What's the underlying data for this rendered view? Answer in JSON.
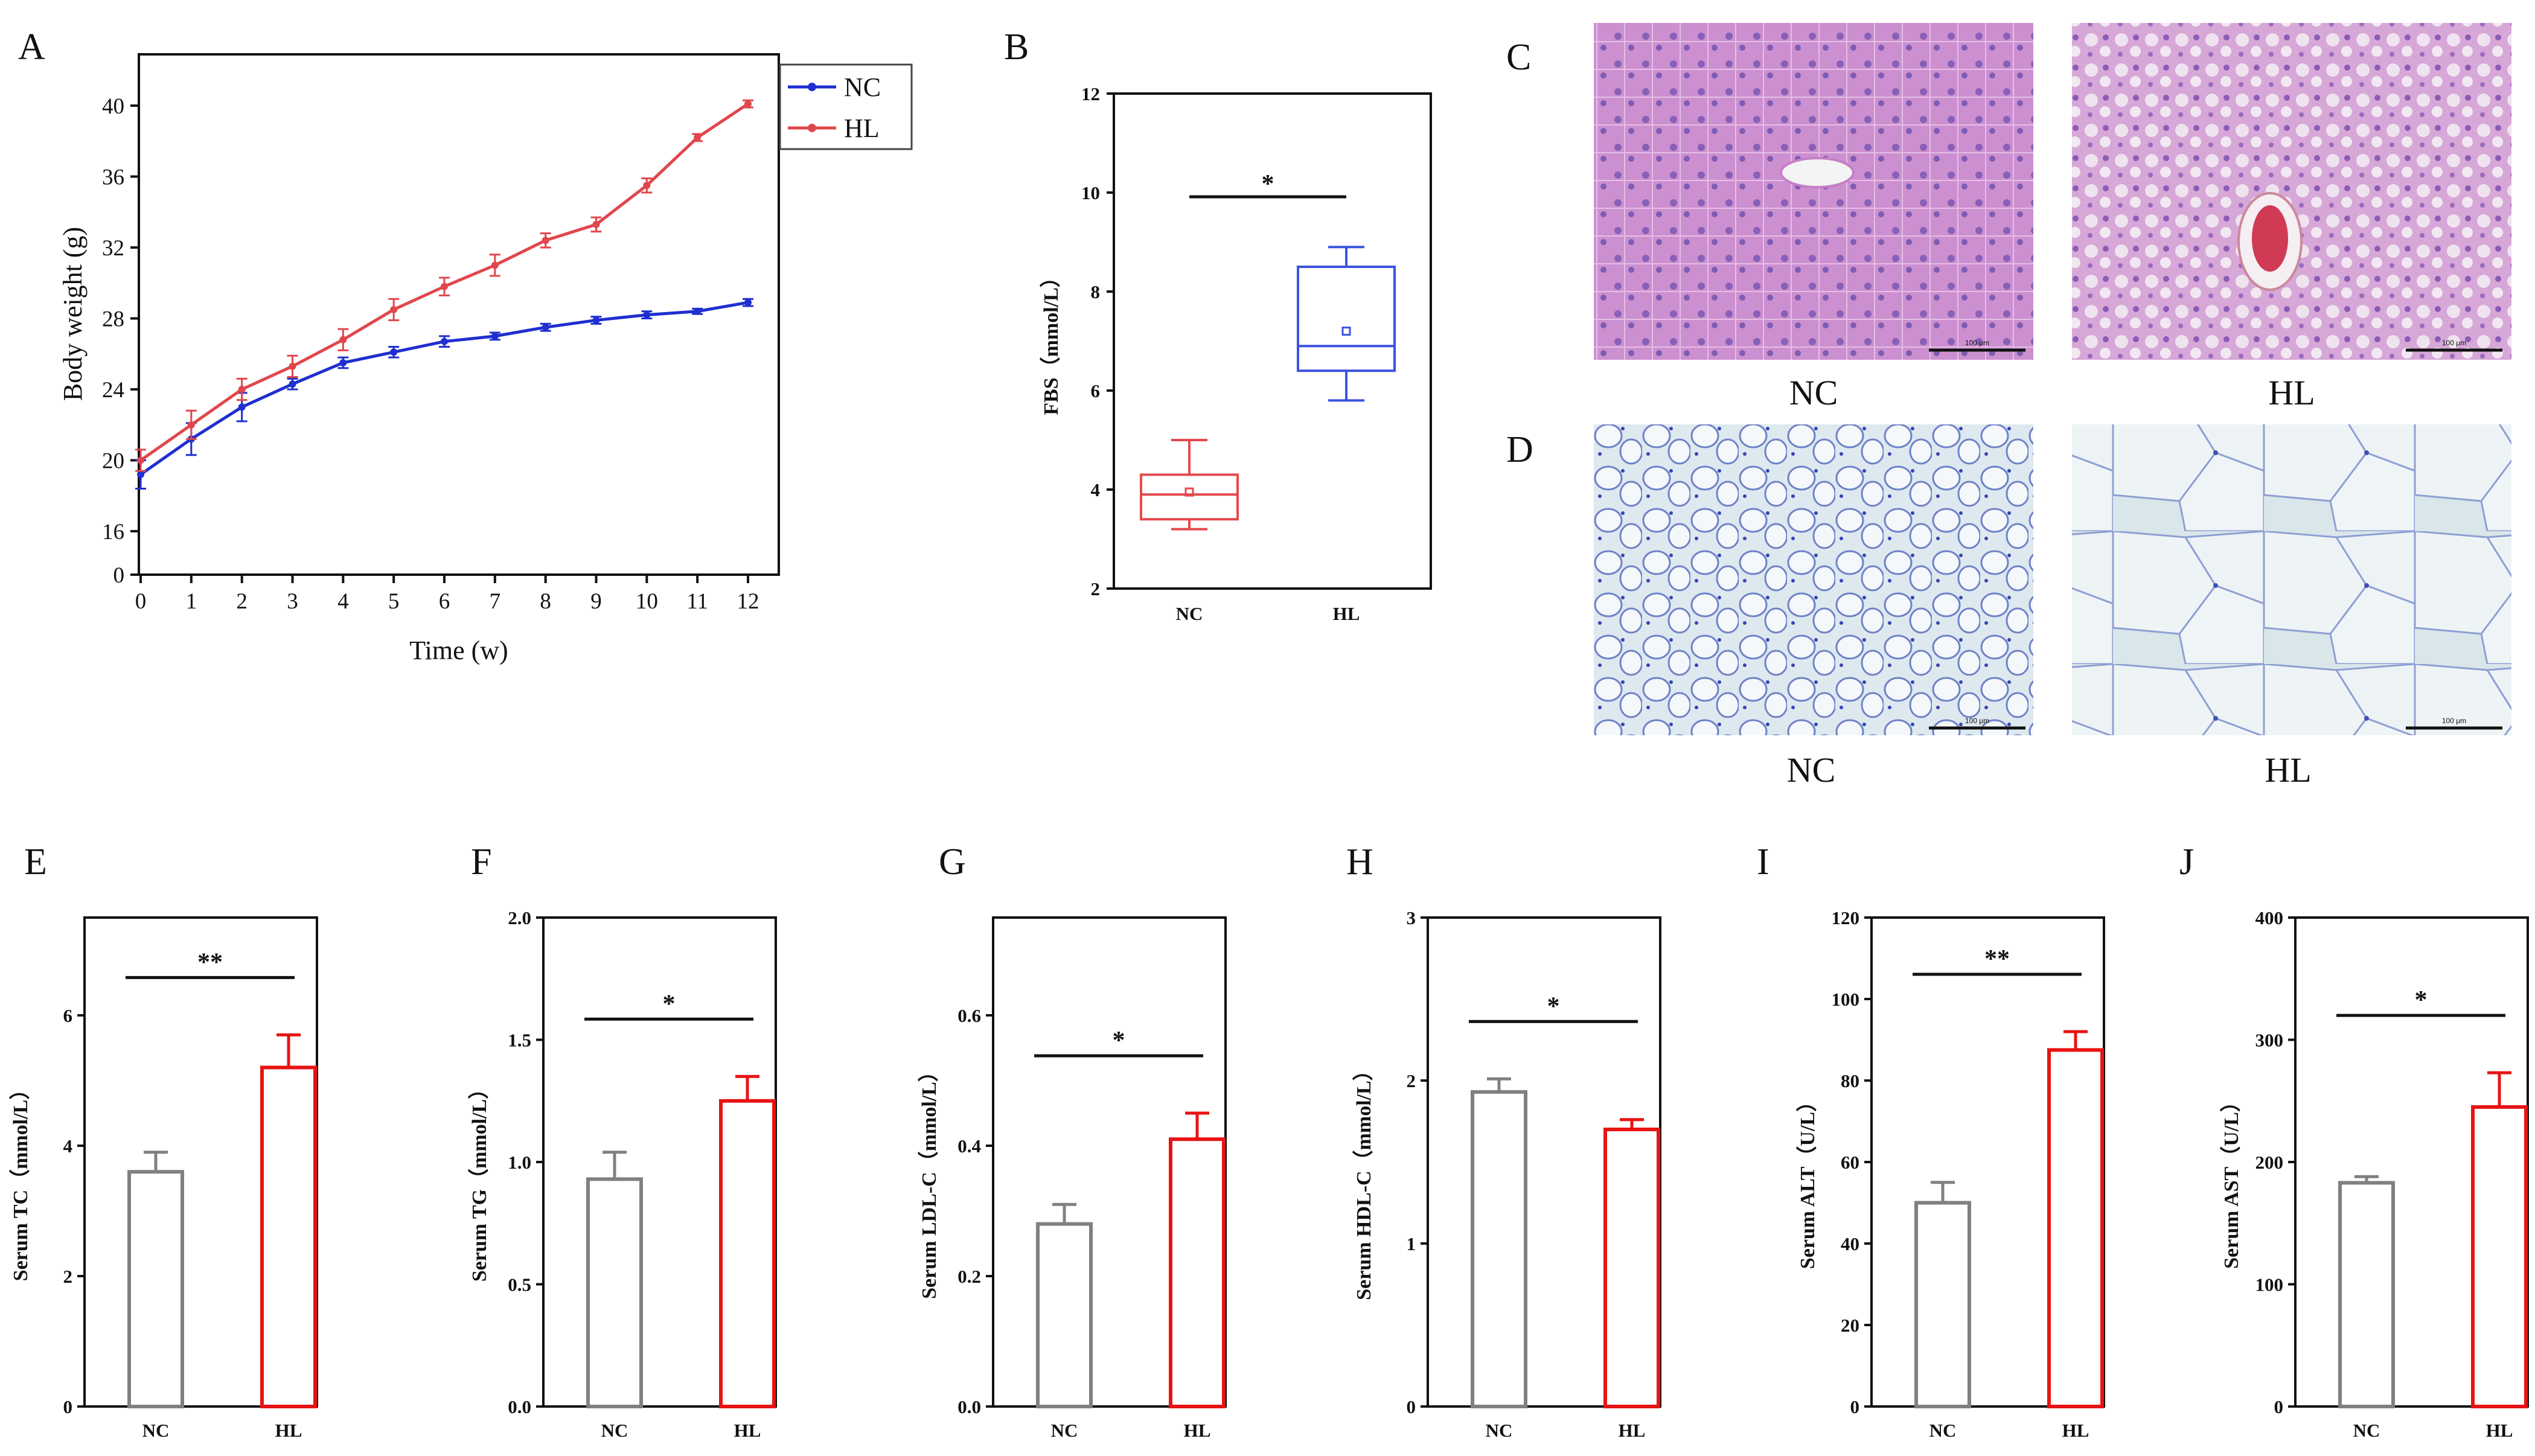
{
  "colors": {
    "nc_line": "#1f2fd0",
    "hl_line": "#e0474c",
    "nc_bar": "#808080",
    "hl_bar": "#e81313",
    "nc_box": "#e5484d",
    "hl_box": "#3b53e0"
  },
  "panel_letters": {
    "A": "A",
    "B": "B",
    "C": "C",
    "D": "D",
    "E": "E",
    "F": "F",
    "G": "G",
    "H": "H",
    "I": "I",
    "J": "J"
  },
  "image_captions": {
    "c_nc": "NC",
    "c_hl": "HL",
    "d_nc": "NC",
    "d_hl": "HL"
  },
  "scale_bar_label": "100 μm",
  "chart_data": [
    {
      "id": "A",
      "type": "line",
      "xlabel": "Time (w)",
      "ylabel": "Body weight (g)",
      "x": [
        0,
        1,
        2,
        3,
        4,
        5,
        6,
        7,
        8,
        9,
        10,
        11,
        12
      ],
      "xticks": [
        "0",
        "1",
        "2",
        "3",
        "4",
        "5",
        "6",
        "7",
        "8",
        "9",
        "10",
        "11",
        "12"
      ],
      "yticks": [
        "0",
        "16",
        "20",
        "24",
        "28",
        "32",
        "36",
        "40"
      ],
      "legend": [
        "NC",
        "HL"
      ],
      "series": [
        {
          "name": "NC",
          "values": [
            19.2,
            21.2,
            23.0,
            24.3,
            25.5,
            26.1,
            26.7,
            27.0,
            27.5,
            27.9,
            28.2,
            28.4,
            28.9
          ],
          "errors": [
            0.8,
            0.9,
            0.8,
            0.3,
            0.3,
            0.3,
            0.3,
            0.2,
            0.2,
            0.2,
            0.2,
            0.15,
            0.2
          ]
        },
        {
          "name": "HL",
          "values": [
            20.0,
            22.0,
            24.0,
            25.3,
            26.8,
            28.5,
            29.8,
            31.0,
            32.4,
            33.3,
            35.5,
            38.2,
            40.1
          ],
          "errors": [
            0.6,
            0.8,
            0.6,
            0.6,
            0.6,
            0.6,
            0.5,
            0.6,
            0.4,
            0.4,
            0.4,
            0.2,
            0.2
          ]
        }
      ]
    },
    {
      "id": "B",
      "type": "box",
      "ylabel": "FBS（mmol/L）",
      "ylim": [
        2,
        12
      ],
      "yticks": [
        "2",
        "4",
        "6",
        "8",
        "10",
        "12"
      ],
      "categories": [
        "NC",
        "HL"
      ],
      "boxes": [
        {
          "name": "NC",
          "min": 3.2,
          "q1": 3.4,
          "median": 3.9,
          "q3": 4.3,
          "max": 5.0,
          "mean": 3.95
        },
        {
          "name": "HL",
          "min": 5.8,
          "q1": 6.4,
          "median": 6.9,
          "q3": 8.5,
          "max": 8.9,
          "mean": 7.2
        }
      ],
      "significance": "*"
    },
    {
      "id": "E",
      "type": "bar",
      "ylabel": "Serum TC（mmol/L）",
      "ylim": [
        0,
        7.5
      ],
      "yticks": [
        "0",
        "2",
        "4",
        "6"
      ],
      "categories": [
        "NC",
        "HL"
      ],
      "values": [
        3.6,
        5.2
      ],
      "errors": [
        0.3,
        0.5
      ],
      "significance": "**"
    },
    {
      "id": "F",
      "type": "bar",
      "ylabel": "Serum TG（mmol/L）",
      "ylim": [
        0,
        2.0
      ],
      "yticks": [
        "0.0",
        "0.5",
        "1.0",
        "1.5",
        "2.0"
      ],
      "categories": [
        "NC",
        "HL"
      ],
      "values": [
        0.93,
        1.25
      ],
      "errors": [
        0.11,
        0.1
      ],
      "significance": "*"
    },
    {
      "id": "G",
      "type": "bar",
      "ylabel": "Serum LDL-C（mmol/L）",
      "ylim": [
        0,
        0.75
      ],
      "yticks": [
        "0.0",
        "0.2",
        "0.4",
        "0.6"
      ],
      "categories": [
        "NC",
        "HL"
      ],
      "values": [
        0.28,
        0.41
      ],
      "errors": [
        0.03,
        0.04
      ],
      "significance": "*"
    },
    {
      "id": "H",
      "type": "bar",
      "ylabel": "Serum HDL-C（mmol/L）",
      "ylim": [
        0,
        3
      ],
      "yticks": [
        "0",
        "1",
        "2",
        "3"
      ],
      "categories": [
        "NC",
        "HL"
      ],
      "values": [
        1.93,
        1.7
      ],
      "errors": [
        0.08,
        0.06
      ],
      "significance": "*"
    },
    {
      "id": "I",
      "type": "bar",
      "ylabel": "Serum ALT（U/L）",
      "ylim": [
        0,
        120
      ],
      "yticks": [
        "0",
        "20",
        "40",
        "60",
        "80",
        "100",
        "120"
      ],
      "categories": [
        "NC",
        "HL"
      ],
      "values": [
        50,
        87.5
      ],
      "errors": [
        5,
        4.5
      ],
      "significance": "**"
    },
    {
      "id": "J",
      "type": "bar",
      "ylabel": "Serum AST（U/L）",
      "ylim": [
        0,
        400
      ],
      "yticks": [
        "0",
        "100",
        "200",
        "300",
        "400"
      ],
      "categories": [
        "NC",
        "HL"
      ],
      "values": [
        183,
        245
      ],
      "errors": [
        5,
        28
      ],
      "significance": "*"
    }
  ]
}
